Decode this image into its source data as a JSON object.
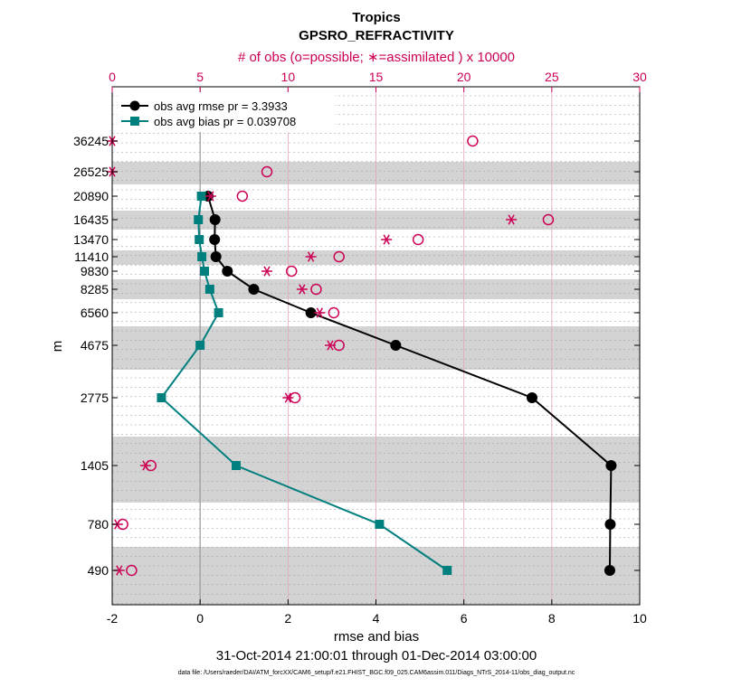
{
  "chart_data": {
    "type": "line",
    "title": "Tropics",
    "subtitle": "GPSRO_REFRACTIVITY",
    "top_axis_label": "# of obs (o=possible; ∗=assimilated ) x 10000",
    "xlabel": "rmse and bias",
    "ylabel": "m",
    "date_range": "31-Oct-2014 21:00:01 through 01-Dec-2014 03:00:00",
    "footnote": "data file: /Users/raeder/DAI/ATM_forcXX/CAM6_setup/f.e21.FHIST_BGC.f09_025.CAM6assim.011/Diags_NTrS_2014-11/obs_diag_output.nc",
    "xlim": [
      -2,
      10
    ],
    "xticks": [
      "-2",
      "0",
      "2",
      "4",
      "6",
      "8",
      "10"
    ],
    "top_xlim": [
      0,
      30
    ],
    "top_xticks": [
      "0",
      "5",
      "10",
      "15",
      "20",
      "25",
      "30"
    ],
    "levels": [
      "36245",
      "26525",
      "20890",
      "16435",
      "13470",
      "11410",
      "9830",
      "8285",
      "6560",
      "4675",
      "2775",
      "1405",
      "780",
      "490"
    ],
    "legend": [
      {
        "name": "obs avg rmse pr = 3.3933",
        "color": "#000000",
        "marker": "circle"
      },
      {
        "name": "obs avg bias pr = 0.039708",
        "color": "#007f7f",
        "marker": "square"
      }
    ],
    "series": [
      {
        "name": "rmse",
        "color": "#000000",
        "values": [
          null,
          null,
          0.18,
          0.34,
          0.33,
          0.36,
          0.62,
          1.22,
          2.52,
          4.45,
          7.55,
          9.35,
          9.33,
          9.32
        ]
      },
      {
        "name": "bias",
        "color": "#007f7f",
        "values": [
          null,
          null,
          0.03,
          -0.04,
          -0.02,
          0.04,
          0.1,
          0.22,
          0.42,
          0.0,
          -0.88,
          0.82,
          4.08,
          5.62
        ]
      }
    ],
    "obs_possible": [
      20.5,
      8.8,
      7.4,
      24.8,
      17.4,
      12.9,
      10.2,
      11.6,
      12.6,
      12.9,
      10.4,
      2.2,
      0.6,
      1.1
    ],
    "obs_assimilated": [
      0.0,
      0.0,
      5.6,
      22.7,
      15.6,
      11.3,
      8.8,
      10.8,
      11.8,
      12.4,
      10.0,
      1.9,
      0.3,
      0.4
    ]
  }
}
